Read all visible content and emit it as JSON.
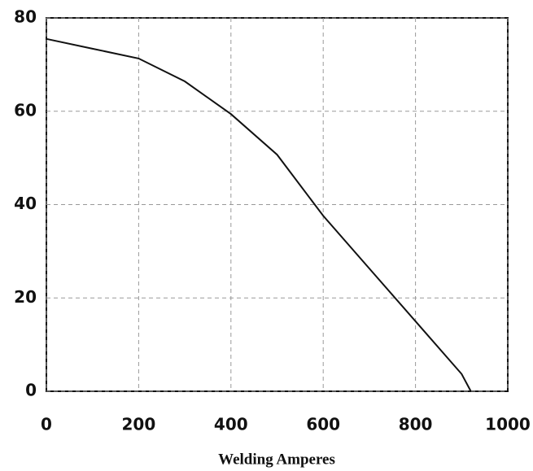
{
  "chart_data": {
    "type": "line",
    "xlabel": "Welding Amperes",
    "x": [
      0,
      100,
      200,
      300,
      400,
      500,
      600,
      700,
      800,
      900,
      920
    ],
    "series": [
      {
        "color": "#111111",
        "values": [
          75.5,
          73.4,
          71.3,
          66.4,
          59.4,
          50.7,
          37.6,
          26.3,
          15,
          3.7,
          0
        ]
      }
    ],
    "xlim": [
      0,
      1000
    ],
    "xticks": [
      0,
      200,
      400,
      600,
      800,
      1000
    ],
    "ylim": [
      0,
      80
    ],
    "yticks": [
      0,
      20,
      40,
      60,
      80
    ],
    "grid": true
  }
}
